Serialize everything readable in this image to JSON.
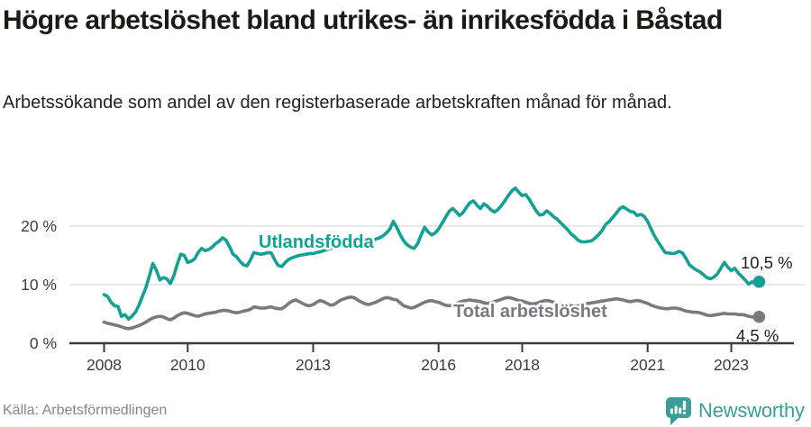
{
  "header": {
    "title": "Högre arbetslöshet bland utrikes- än inrikesfödda i Båstad",
    "subtitle": "Arbetssökande som andel av den registerbaserade arbetskraften månad för månad."
  },
  "footer": {
    "source": "Källa: Arbetsförmedlingen",
    "brand": "Newsworthy"
  },
  "icons": {
    "brand_logo": "bar-chart-speech-bubble-icon"
  },
  "colors": {
    "series_foreign_teal": "#13a195",
    "series_total_gray": "#7a797d",
    "value_label_text": "#1f1f1f",
    "axis": "#3a3a3a",
    "tick_label_text": "#3c3c3c",
    "grid": "#e2e2e2",
    "title_text": "#1b1b16",
    "muted_text": "#83878b",
    "brand_teal": "#3a9e99",
    "background": "#ffffff"
  },
  "chart_data": {
    "type": "line",
    "x_unit": "month",
    "x_start": "2008-01",
    "x_end": "2023-09",
    "x_tick_years": [
      2008,
      2010,
      2013,
      2016,
      2018,
      2021,
      2023
    ],
    "x_tick_labels": [
      "2008",
      "2010",
      "2013",
      "2016",
      "2018",
      "2021",
      "2023"
    ],
    "y_ticks": [
      0,
      10,
      20
    ],
    "y_tick_labels": [
      "0 %",
      "10 %",
      "20 %"
    ],
    "ylim": [
      0,
      28
    ],
    "grid": "horizontal",
    "legend": "inline-series-labels",
    "series": [
      {
        "name": "Utlandsfödda",
        "color": "#13a195",
        "end_label": "10,5 %",
        "end_value": 10.5,
        "values": [
          8.3,
          8.0,
          7.0,
          6.4,
          6.3,
          4.6,
          4.9,
          4.1,
          4.6,
          5.3,
          6.5,
          8.0,
          9.5,
          11.5,
          13.6,
          12.5,
          10.8,
          11.2,
          11.0,
          10.2,
          11.5,
          13.5,
          15.2,
          15.0,
          13.8,
          14.0,
          14.4,
          15.5,
          16.2,
          15.8,
          16.0,
          16.4,
          17.0,
          17.4,
          18.0,
          17.6,
          16.5,
          15.2,
          14.8,
          14.0,
          13.4,
          13.2,
          14.2,
          15.5,
          15.3,
          15.2,
          15.3,
          15.5,
          15.4,
          14.2,
          13.3,
          13.1,
          13.8,
          14.3,
          14.6,
          14.8,
          15.0,
          15.1,
          15.2,
          15.3,
          15.3,
          15.5,
          15.6,
          15.8,
          16.0,
          16.2,
          16.4,
          16.3,
          16.5,
          16.7,
          16.9,
          17.0,
          17.2,
          17.0,
          16.8,
          17.0,
          17.3,
          17.5,
          17.8,
          18.0,
          18.3,
          18.8,
          19.5,
          20.8,
          19.8,
          18.5,
          17.5,
          16.8,
          16.4,
          16.2,
          17.0,
          18.5,
          19.8,
          19.0,
          18.5,
          18.8,
          19.5,
          20.5,
          21.5,
          22.5,
          23.0,
          22.5,
          21.8,
          22.3,
          23.2,
          24.0,
          24.3,
          23.6,
          23.0,
          23.8,
          23.4,
          22.8,
          22.4,
          22.8,
          23.5,
          24.3,
          25.2,
          26.0,
          26.5,
          25.8,
          25.2,
          25.4,
          24.6,
          23.6,
          22.6,
          21.9,
          22.0,
          22.6,
          22.2,
          21.6,
          21.2,
          20.6,
          20.0,
          19.4,
          18.7,
          18.2,
          17.6,
          17.3,
          17.3,
          17.4,
          17.5,
          18.0,
          18.6,
          19.3,
          20.3,
          20.8,
          21.5,
          22.2,
          23.0,
          23.3,
          22.9,
          22.5,
          22.4,
          21.8,
          22.0,
          21.7,
          20.8,
          19.5,
          18.3,
          17.3,
          16.4,
          15.5,
          15.4,
          15.3,
          15.4,
          15.7,
          15.4,
          14.5,
          13.4,
          12.9,
          12.5,
          12.2,
          11.7,
          11.2,
          11.0,
          11.3,
          11.8,
          12.8,
          13.8,
          13.0,
          12.4,
          12.8,
          12.0,
          11.4,
          10.8,
          10.1,
          10.5,
          10.1,
          10.5
        ]
      },
      {
        "name": "Total arbetslöshet",
        "color": "#7a797d",
        "end_label": "4,5 %",
        "end_value": 4.5,
        "values": [
          3.6,
          3.4,
          3.3,
          3.1,
          3.0,
          2.8,
          2.6,
          2.5,
          2.6,
          2.8,
          3.0,
          3.3,
          3.6,
          4.0,
          4.3,
          4.5,
          4.6,
          4.5,
          4.2,
          4.0,
          4.3,
          4.7,
          5.0,
          5.2,
          5.1,
          4.9,
          4.7,
          4.6,
          4.8,
          5.0,
          5.1,
          5.2,
          5.3,
          5.5,
          5.6,
          5.6,
          5.5,
          5.3,
          5.2,
          5.3,
          5.5,
          5.6,
          5.8,
          6.2,
          6.1,
          6.0,
          6.0,
          6.1,
          6.2,
          6.0,
          5.9,
          5.9,
          6.3,
          6.8,
          7.2,
          7.4,
          7.1,
          6.8,
          6.5,
          6.4,
          6.6,
          7.0,
          7.3,
          7.1,
          6.8,
          6.5,
          6.6,
          7.0,
          7.4,
          7.6,
          7.8,
          7.9,
          7.7,
          7.3,
          7.0,
          6.7,
          6.6,
          6.8,
          7.0,
          7.3,
          7.6,
          7.8,
          7.7,
          7.5,
          7.4,
          6.9,
          6.4,
          6.2,
          6.0,
          6.1,
          6.4,
          6.7,
          7.0,
          7.2,
          7.3,
          7.1,
          7.0,
          6.7,
          6.5,
          6.4,
          6.5,
          6.7,
          7.0,
          7.2,
          7.3,
          7.4,
          7.3,
          7.2,
          7.1,
          6.9,
          6.8,
          6.9,
          7.1,
          7.3,
          7.5,
          7.7,
          7.8,
          7.7,
          7.5,
          7.3,
          7.2,
          7.0,
          6.8,
          6.7,
          6.8,
          7.0,
          7.2,
          7.3,
          7.2,
          7.0,
          6.8,
          6.7,
          6.6,
          6.5,
          6.4,
          6.3,
          6.4,
          6.5,
          6.7,
          6.8,
          6.9,
          7.0,
          7.1,
          7.2,
          7.3,
          7.4,
          7.5,
          7.6,
          7.5,
          7.4,
          7.2,
          7.1,
          7.2,
          7.3,
          7.2,
          7.0,
          6.8,
          6.5,
          6.3,
          6.1,
          6.0,
          5.9,
          5.9,
          6.0,
          6.0,
          5.9,
          5.7,
          5.5,
          5.4,
          5.3,
          5.3,
          5.2,
          5.0,
          4.8,
          4.7,
          4.8,
          4.9,
          5.0,
          5.1,
          5.0,
          5.0,
          5.0,
          4.9,
          4.9,
          4.8,
          4.6,
          4.5,
          4.4,
          4.5
        ]
      }
    ]
  }
}
